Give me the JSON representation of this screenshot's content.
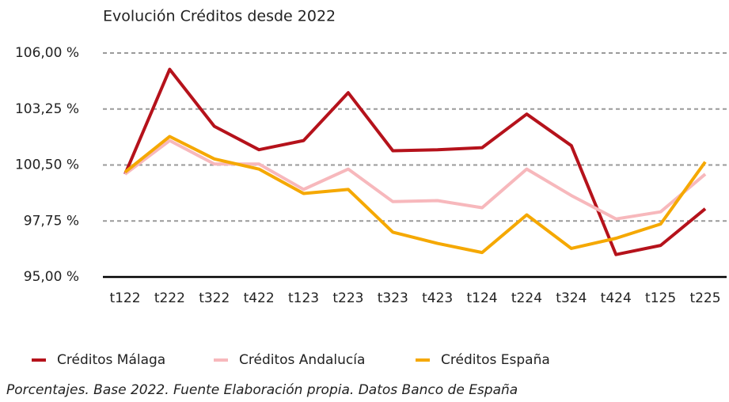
{
  "chart_data": {
    "type": "line",
    "title": "Evolución Créditos desde 2022",
    "note": "Porcentajes. Base 2022. Fuente Elaboración propia. Datos Banco de España",
    "categories": [
      "t122",
      "t222",
      "t322",
      "t422",
      "t123",
      "t223",
      "t323",
      "t423",
      "t124",
      "t224",
      "t324",
      "t424",
      "t125",
      "t225"
    ],
    "series": [
      {
        "name": "Créditos Málaga",
        "color": "#b5121b",
        "values": [
          100.05,
          105.2,
          102.4,
          101.25,
          101.7,
          104.05,
          101.2,
          101.25,
          101.35,
          103.0,
          101.45,
          96.1,
          96.55,
          98.35
        ]
      },
      {
        "name": "Créditos Andalucía",
        "color": "#f7b8bc",
        "values": [
          100.05,
          101.7,
          100.55,
          100.55,
          99.3,
          100.3,
          98.7,
          98.75,
          98.4,
          100.3,
          99.0,
          97.85,
          98.2,
          100.05
        ]
      },
      {
        "name": "Créditos España",
        "color": "#f5a800",
        "values": [
          100.15,
          101.9,
          100.8,
          100.3,
          99.1,
          99.3,
          97.2,
          96.65,
          96.2,
          98.05,
          96.4,
          96.9,
          97.6,
          100.65
        ]
      }
    ],
    "ylim": [
      95,
      106
    ],
    "yticks": [
      {
        "value": 95,
        "label": "95,00 %"
      },
      {
        "value": 97.75,
        "label": "97,75 %"
      },
      {
        "value": 100.5,
        "label": "100,50 %"
      },
      {
        "value": 103.25,
        "label": "103,25 %"
      },
      {
        "value": 106,
        "label": "106,00 %"
      }
    ],
    "grid": true,
    "legend": "bottom"
  }
}
